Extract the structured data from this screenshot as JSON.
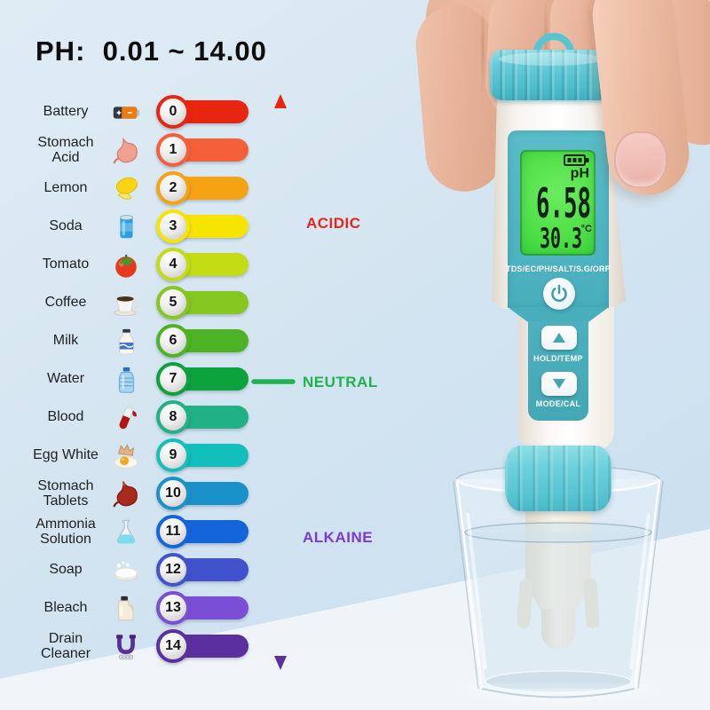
{
  "title": "PH:  0.01 ~ 14.00",
  "scale": {
    "items": [
      {
        "label": "Battery",
        "value": "0",
        "color": "#e8250f",
        "icon": "battery-icon"
      },
      {
        "label": "Stomach Acid",
        "value": "1",
        "color": "#f4603a",
        "icon": "stomach-icon"
      },
      {
        "label": "Lemon",
        "value": "2",
        "color": "#f6a313",
        "icon": "lemon-icon"
      },
      {
        "label": "Soda",
        "value": "3",
        "color": "#f8e402",
        "icon": "soda-can-icon"
      },
      {
        "label": "Tomato",
        "value": "4",
        "color": "#c3dc13",
        "icon": "tomato-icon"
      },
      {
        "label": "Coffee",
        "value": "5",
        "color": "#86c81f",
        "icon": "coffee-icon"
      },
      {
        "label": "Milk",
        "value": "6",
        "color": "#4cb424",
        "icon": "milk-icon"
      },
      {
        "label": "Water",
        "value": "7",
        "color": "#0ba23c",
        "icon": "water-bottle-icon"
      },
      {
        "label": "Blood",
        "value": "8",
        "color": "#20b184",
        "icon": "blood-icon"
      },
      {
        "label": "Egg White",
        "value": "9",
        "color": "#12bfba",
        "icon": "egg-icon"
      },
      {
        "label": "Stomach Tablets",
        "value": "10",
        "color": "#1a92c9",
        "icon": "stomach-tablets-icon"
      },
      {
        "label": "Ammonia Solution",
        "value": "11",
        "color": "#1465da",
        "icon": "flask-icon"
      },
      {
        "label": "Soap",
        "value": "12",
        "color": "#4053cd",
        "icon": "soap-icon"
      },
      {
        "label": "Bleach",
        "value": "13",
        "color": "#7c4ed5",
        "icon": "bleach-icon"
      },
      {
        "label": "Drain Cleaner",
        "value": "14",
        "color": "#5c2f9e",
        "icon": "drain-pipe-icon"
      }
    ]
  },
  "legend": {
    "acidic_label": "ACIDIC",
    "neutral_label": "NEUTRAL",
    "alkaline_label": "ALKAINE",
    "acidic_color": "#e8251d",
    "neutral_color": "#1fb24e",
    "alkaline_color": "#7a3bd3"
  },
  "device": {
    "screen": {
      "battery_icon": "battery-level-icon",
      "unit_label": "pH",
      "reading": "6.58",
      "temperature": "30.3",
      "temperature_unit": "°C"
    },
    "modes_label": "TDS/EC/PH/SALT/S.G/ORP",
    "power_button_icon": "power-icon",
    "up_button_icon": "up-arrow-icon",
    "up_button_label": "HOLD/TEMP",
    "down_button_icon": "down-arrow-icon",
    "down_button_label": "MODE/CAL"
  }
}
